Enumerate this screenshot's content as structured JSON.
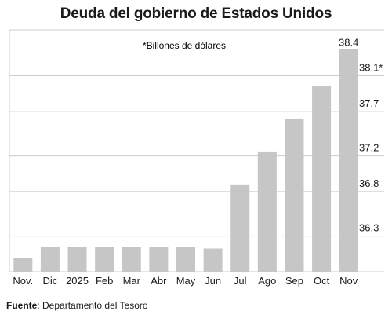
{
  "chart_data": {
    "type": "bar",
    "title": "Deuda del gobierno de Estados Unidos",
    "note": "*Billones de dólares",
    "categories": [
      "Nov.",
      "Dic",
      "2025",
      "Feb",
      "Mar",
      "Abr",
      "May",
      "Jun",
      "Jul",
      "Ago",
      "Sep",
      "Oct",
      "Nov"
    ],
    "values": [
      36.05,
      36.18,
      36.18,
      36.18,
      36.18,
      36.18,
      36.18,
      36.16,
      36.88,
      37.25,
      37.62,
      37.99,
      38.4
    ],
    "data_labels": [
      {
        "index": 12,
        "text": "38.4"
      }
    ],
    "yticks": [
      {
        "value": 36.3,
        "label": "36.3"
      },
      {
        "value": 36.8,
        "label": "36.8"
      },
      {
        "value": 37.2,
        "label": "37.2"
      },
      {
        "value": 37.7,
        "label": "37.7"
      },
      {
        "value": 38.1,
        "label": "38.1*"
      }
    ],
    "ylim": [
      35.9,
      38.66
    ],
    "grid": true,
    "bar_color": "#c6c6c6",
    "grid_color": "#cccccc"
  },
  "footer": {
    "source_label": "Fuente",
    "source_text": ": Departamento del Tesoro"
  }
}
